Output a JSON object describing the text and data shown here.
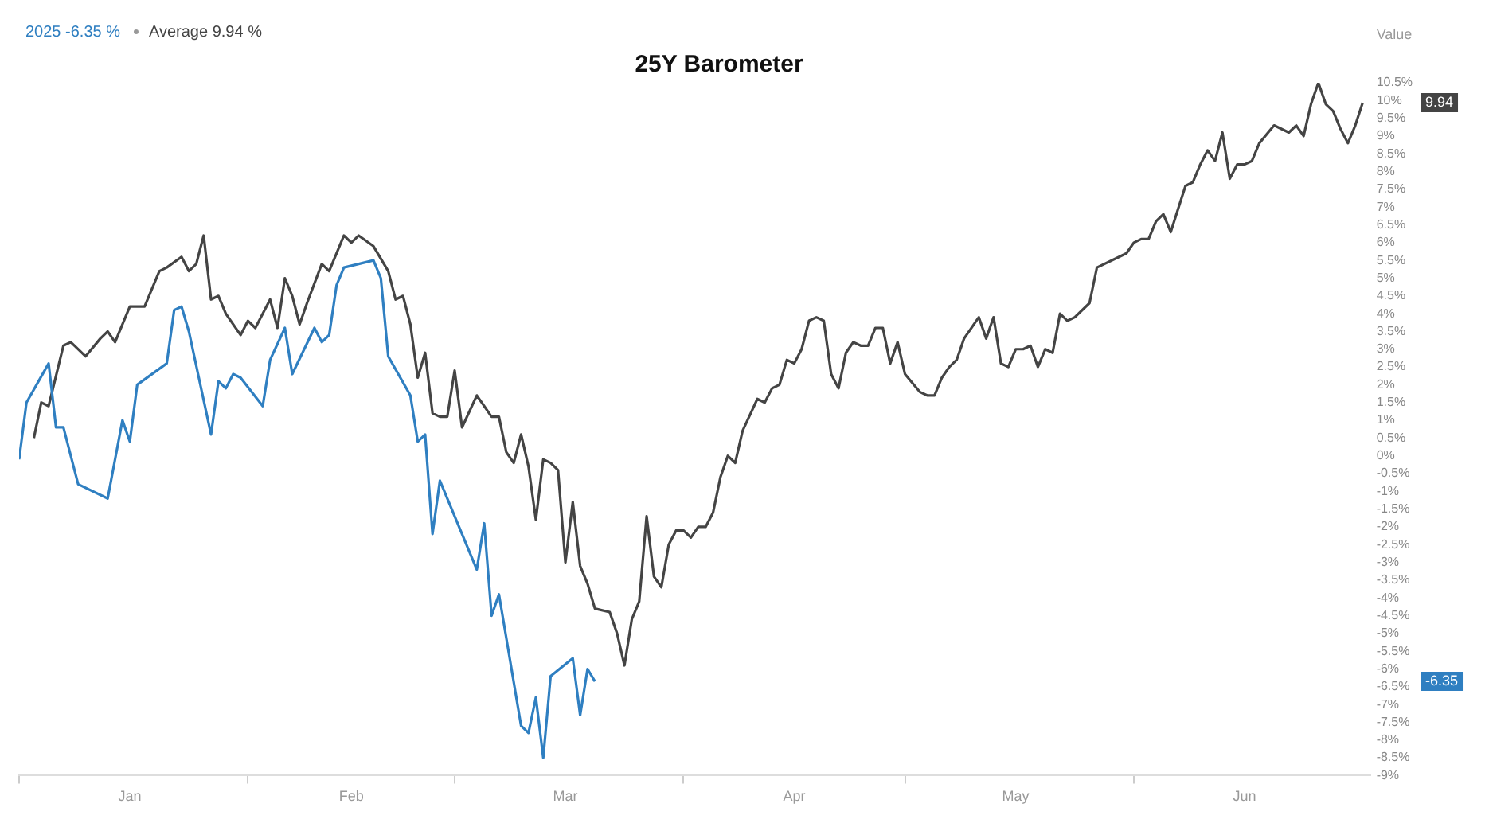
{
  "chart_data": {
    "type": "line",
    "title": "25Y Barometer",
    "ylabel": "Value",
    "grid": false,
    "marker": "none",
    "line_style": "solid",
    "xlim": [
      "--01-01",
      "--07-03"
    ],
    "xticks": [
      {
        "value": "--01-01",
        "label": null
      },
      {
        "value": "--01-16",
        "label": "Jan"
      },
      {
        "value": "--02-01",
        "label": null
      },
      {
        "value": "--02-15",
        "label": "Feb"
      },
      {
        "value": "--03-01",
        "label": null
      },
      {
        "value": "--03-16",
        "label": "Mar"
      },
      {
        "value": "--04-01",
        "label": null
      },
      {
        "value": "--04-16",
        "label": "Apr"
      },
      {
        "value": "--05-01",
        "label": null
      },
      {
        "value": "--05-16",
        "label": "May"
      },
      {
        "value": "--06-01",
        "label": null
      },
      {
        "value": "--06-16",
        "label": "Jun"
      }
    ],
    "ylim": [
      -9,
      10.5
    ],
    "yticks": [
      {
        "value": -9,
        "label": "-9%"
      },
      {
        "value": -8.5,
        "label": "-8.5%"
      },
      {
        "value": -8,
        "label": "-8%"
      },
      {
        "value": -7.5,
        "label": "-7.5%"
      },
      {
        "value": -7,
        "label": "-7%"
      },
      {
        "value": -6.5,
        "label": "-6.5%"
      },
      {
        "value": -6,
        "label": "-6%"
      },
      {
        "value": -5.5,
        "label": "-5.5%"
      },
      {
        "value": -5,
        "label": "-5%"
      },
      {
        "value": -4.5,
        "label": "-4.5%"
      },
      {
        "value": -4,
        "label": "-4%"
      },
      {
        "value": -3.5,
        "label": "-3.5%"
      },
      {
        "value": -3,
        "label": "-3%"
      },
      {
        "value": -2.5,
        "label": "-2.5%"
      },
      {
        "value": -2,
        "label": "-2%"
      },
      {
        "value": -1.5,
        "label": "-1.5%"
      },
      {
        "value": -1,
        "label": "-1%"
      },
      {
        "value": -0.5,
        "label": "-0.5%"
      },
      {
        "value": 0,
        "label": "0%"
      },
      {
        "value": 0.5,
        "label": "0.5%"
      },
      {
        "value": 1,
        "label": "1%"
      },
      {
        "value": 1.5,
        "label": "1.5%"
      },
      {
        "value": 2,
        "label": "2%"
      },
      {
        "value": 2.5,
        "label": "2.5%"
      },
      {
        "value": 3,
        "label": "3%"
      },
      {
        "value": 3.5,
        "label": "3.5%"
      },
      {
        "value": 4,
        "label": "4%"
      },
      {
        "value": 4.5,
        "label": "4.5%"
      },
      {
        "value": 5,
        "label": "5%"
      },
      {
        "value": 5.5,
        "label": "5.5%"
      },
      {
        "value": 6,
        "label": "6%"
      },
      {
        "value": 6.5,
        "label": "6.5%"
      },
      {
        "value": 7,
        "label": "7%"
      },
      {
        "value": 7.5,
        "label": "7.5%"
      },
      {
        "value": 8,
        "label": "8%"
      },
      {
        "value": 8.5,
        "label": "8.5%"
      },
      {
        "value": 9,
        "label": "9%"
      },
      {
        "value": 9.5,
        "label": "9.5%"
      },
      {
        "value": 10,
        "label": "10%"
      },
      {
        "value": 10.5,
        "label": "10.5%"
      }
    ],
    "series": [
      {
        "name": "2025",
        "color": "#2f7fc1",
        "x": [
          "--01-01",
          "--01-02",
          "--01-05",
          "--01-06",
          "--01-07",
          "--01-09",
          "--01-13",
          "--01-15",
          "--01-16",
          "--01-17",
          "--01-21",
          "--01-22",
          "--01-23",
          "--01-24",
          "--01-27",
          "--01-28",
          "--01-29",
          "--01-30",
          "--01-31",
          "--02-03",
          "--02-04",
          "--02-06",
          "--02-07",
          "--02-10",
          "--02-11",
          "--02-12",
          "--02-13",
          "--02-14",
          "--02-18",
          "--02-19",
          "--02-20",
          "--02-23",
          "--02-24",
          "--02-25",
          "--02-26",
          "--02-27",
          "--03-04",
          "--03-05",
          "--03-06",
          "--03-07",
          "--03-10",
          "--03-11",
          "--03-12",
          "--03-13",
          "--03-14",
          "--03-17",
          "--03-18",
          "--03-19",
          "--03-20"
        ],
        "values": [
          -0.1,
          1.5,
          2.6,
          0.8,
          0.8,
          -0.8,
          -1.2,
          1,
          0.4,
          2,
          2.6,
          4.1,
          4.2,
          3.5,
          0.6,
          2.1,
          1.9,
          2.3,
          2.2,
          1.4,
          2.7,
          3.6,
          2.3,
          3.6,
          3.2,
          3.4,
          4.8,
          5.3,
          5.5,
          5,
          2.8,
          1.7,
          0.4,
          0.6,
          -2.2,
          -0.7,
          -3.2,
          -1.9,
          -4.5,
          -3.9,
          -7.6,
          -7.8,
          -6.8,
          -8.5,
          -6.2,
          -5.7,
          -7.3,
          -6,
          -6.35
        ]
      },
      {
        "name": "Average",
        "color": "#444444",
        "x": [
          "--01-03",
          "--01-04",
          "--01-05",
          "--01-07",
          "--01-08",
          "--01-10",
          "--01-12",
          "--01-13",
          "--01-14",
          "--01-16",
          "--01-18",
          "--01-20",
          "--01-21",
          "--01-23",
          "--01-24",
          "--01-25",
          "--01-26",
          "--01-27",
          "--01-28",
          "--01-29",
          "--01-31",
          "--02-01",
          "--02-02",
          "--02-04",
          "--02-05",
          "--02-06",
          "--02-07",
          "--02-08",
          "--02-09",
          "--02-11",
          "--02-12",
          "--02-14",
          "--02-15",
          "--02-16",
          "--02-18",
          "--02-20",
          "--02-21",
          "--02-22",
          "--02-23",
          "--02-24",
          "--02-25",
          "--02-26",
          "--02-27",
          "--02-28",
          "--03-01",
          "--03-02",
          "--03-04",
          "--03-06",
          "--03-07",
          "--03-08",
          "--03-09",
          "--03-10",
          "--03-11",
          "--03-12",
          "--03-13",
          "--03-14",
          "--03-15",
          "--03-16",
          "--03-17",
          "--03-18",
          "--03-19",
          "--03-20",
          "--03-22",
          "--03-23",
          "--03-24",
          "--03-25",
          "--03-26",
          "--03-27",
          "--03-28",
          "--03-29",
          "--03-30",
          "--03-31",
          "--04-01",
          "--04-02",
          "--04-03",
          "--04-04",
          "--04-05",
          "--04-06",
          "--04-07",
          "--04-08",
          "--04-09",
          "--04-11",
          "--04-12",
          "--04-13",
          "--04-14",
          "--04-15",
          "--04-16",
          "--04-17",
          "--04-18",
          "--04-19",
          "--04-20",
          "--04-21",
          "--04-22",
          "--04-23",
          "--04-24",
          "--04-25",
          "--04-26",
          "--04-27",
          "--04-28",
          "--04-29",
          "--04-30",
          "--05-01",
          "--05-03",
          "--05-04",
          "--05-05",
          "--05-06",
          "--05-07",
          "--05-08",
          "--05-09",
          "--05-11",
          "--05-12",
          "--05-13",
          "--05-14",
          "--05-15",
          "--05-16",
          "--05-17",
          "--05-18",
          "--05-19",
          "--05-20",
          "--05-21",
          "--05-22",
          "--05-23",
          "--05-24",
          "--05-26",
          "--05-27",
          "--05-30",
          "--05-31",
          "--06-01",
          "--06-02",
          "--06-03",
          "--06-04",
          "--06-05",
          "--06-06",
          "--06-08",
          "--06-09",
          "--06-10",
          "--06-11",
          "--06-12",
          "--06-13",
          "--06-14",
          "--06-15",
          "--06-16",
          "--06-17",
          "--06-18",
          "--06-20",
          "--06-21",
          "--06-22",
          "--06-23",
          "--06-24",
          "--06-25",
          "--06-26",
          "--06-27",
          "--06-28",
          "--06-29",
          "--06-30",
          "--07-01",
          "--07-02"
        ],
        "values": [
          0.5,
          1.5,
          1.4,
          3.1,
          3.2,
          2.8,
          3.3,
          3.5,
          3.2,
          4.2,
          4.2,
          5.2,
          5.3,
          5.6,
          5.2,
          5.4,
          6.2,
          4.4,
          4.5,
          4,
          3.4,
          3.8,
          3.6,
          4.4,
          3.6,
          5,
          4.5,
          3.7,
          4.3,
          5.4,
          5.2,
          6.2,
          6,
          6.2,
          5.9,
          5.2,
          4.4,
          4.5,
          3.7,
          2.2,
          2.9,
          1.2,
          1.1,
          1.1,
          2.4,
          0.8,
          1.7,
          1.1,
          1.1,
          0.1,
          -0.2,
          0.6,
          -0.3,
          -1.8,
          -0.1,
          -0.2,
          -0.4,
          -3,
          -1.3,
          -3.1,
          -3.6,
          -4.3,
          -4.4,
          -5,
          -5.9,
          -4.6,
          -4.1,
          -1.7,
          -3.4,
          -3.7,
          -2.5,
          -2.1,
          -2.1,
          -2.3,
          -2,
          -2,
          -1.6,
          -0.6,
          0,
          -0.2,
          0.7,
          1.6,
          1.5,
          1.9,
          2,
          2.7,
          2.6,
          3,
          3.8,
          3.9,
          3.8,
          2.3,
          1.9,
          2.9,
          3.2,
          3.1,
          3.1,
          3.6,
          3.6,
          2.6,
          3.2,
          2.3,
          1.8,
          1.7,
          1.7,
          2.2,
          2.5,
          2.7,
          3.3,
          3.9,
          3.3,
          3.9,
          2.6,
          2.5,
          3,
          3,
          3.1,
          2.5,
          3,
          2.9,
          4,
          3.8,
          3.9,
          4.3,
          5.3,
          5.6,
          5.7,
          6,
          6.1,
          6.1,
          6.6,
          6.8,
          6.3,
          7.6,
          7.7,
          8.2,
          8.6,
          8.3,
          9.1,
          7.8,
          8.2,
          8.2,
          8.3,
          8.8,
          9.3,
          9.2,
          9.1,
          9.3,
          9,
          9.9,
          10.5,
          9.9,
          9.7,
          9.2,
          8.8,
          9.3,
          9.94
        ]
      }
    ],
    "annotations": [
      "-6.35 %",
      "9.94 %",
      "-6.35",
      "9.94"
    ]
  }
}
